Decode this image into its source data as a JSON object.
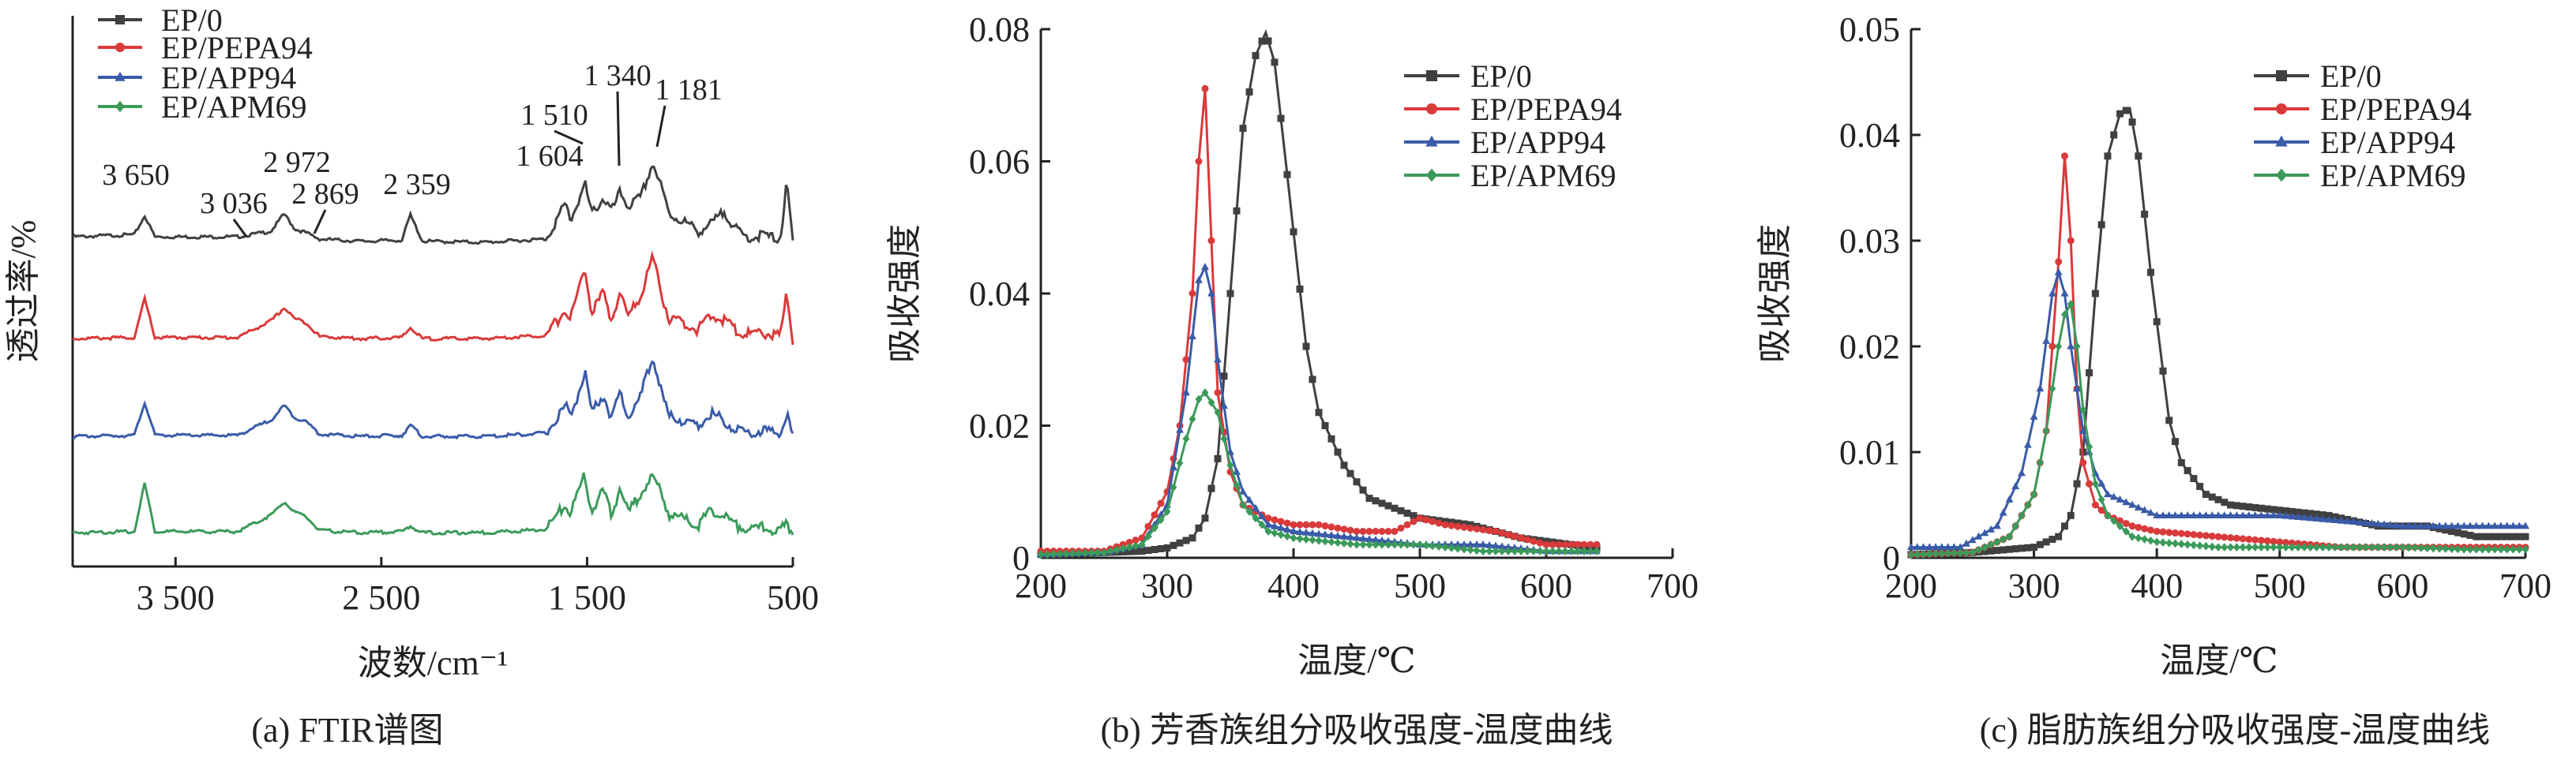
{
  "colors": {
    "EP/0": "#404040",
    "EP/PEPA94": "#d93a3a",
    "EP/APP94": "#3a5ba8",
    "EP/APM69": "#3b9a5a"
  },
  "chart_data": [
    {
      "type": "line",
      "caption": "(a) FTIR谱图",
      "xlabel": "波数/cm⁻¹",
      "ylabel": "透过率/%",
      "xlim": [
        4000,
        500
      ],
      "x_reversed": true,
      "xticks": [
        3500,
        2500,
        1500,
        500
      ],
      "xtick_labels": [
        "3 500",
        "2 500",
        "1 500",
        "500"
      ],
      "yticks_shown": false,
      "legend": [
        "EP/0",
        "EP/PEPA94",
        "EP/APP94",
        "EP/APM69"
      ],
      "legend_position": "top-left",
      "annotations": [
        "3 650",
        "3 036",
        "2 972",
        "2 869",
        "2 359",
        "1 604",
        "1 510",
        "1 340",
        "1 181"
      ],
      "series": [
        {
          "name": "EP/0",
          "marker": "square",
          "x": [
            4000,
            3700,
            3650,
            3600,
            3200,
            3036,
            2972,
            2920,
            2869,
            2800,
            2600,
            2400,
            2359,
            2300,
            2000,
            1700,
            1604,
            1580,
            1510,
            1480,
            1420,
            1380,
            1340,
            1300,
            1240,
            1181,
            1140,
            1100,
            1040,
            960,
            900,
            830,
            780,
            740,
            700,
            650,
            600,
            560,
            530,
            500
          ],
          "y": [
            0.07,
            0.09,
            0.26,
            0.07,
            0.07,
            0.12,
            0.28,
            0.14,
            0.11,
            0.05,
            0.03,
            0.04,
            0.27,
            0.03,
            0.02,
            0.05,
            0.37,
            0.22,
            0.55,
            0.28,
            0.42,
            0.3,
            0.47,
            0.35,
            0.42,
            0.74,
            0.52,
            0.27,
            0.22,
            0.12,
            0.18,
            0.3,
            0.14,
            0.08,
            0.06,
            0.09,
            0.06,
            0.06,
            0.55,
            0.02
          ]
        },
        {
          "name": "EP/PEPA94",
          "marker": "circle",
          "x": [
            4000,
            3700,
            3650,
            3600,
            3200,
            3036,
            2972,
            2920,
            2869,
            2800,
            2600,
            2400,
            2359,
            2300,
            2000,
            1700,
            1604,
            1580,
            1510,
            1480,
            1420,
            1380,
            1340,
            1300,
            1240,
            1181,
            1140,
            1100,
            1040,
            960,
            900,
            830,
            780,
            740,
            700,
            650,
            600,
            560,
            530,
            500
          ],
          "y": [
            0.02,
            0.03,
            0.38,
            0.03,
            0.03,
            0.18,
            0.3,
            0.2,
            0.17,
            0.04,
            0.02,
            0.03,
            0.12,
            0.02,
            0.02,
            0.05,
            0.28,
            0.2,
            0.67,
            0.25,
            0.43,
            0.18,
            0.44,
            0.22,
            0.4,
            0.77,
            0.43,
            0.2,
            0.17,
            0.1,
            0.22,
            0.19,
            0.1,
            0.07,
            0.05,
            0.08,
            0.05,
            0.05,
            0.42,
            0.01
          ]
        },
        {
          "name": "EP/APP94",
          "marker": "triangle",
          "x": [
            4000,
            3700,
            3650,
            3600,
            3200,
            3036,
            2972,
            2920,
            2869,
            2800,
            2600,
            2400,
            2359,
            2300,
            2000,
            1700,
            1604,
            1580,
            1510,
            1480,
            1420,
            1380,
            1340,
            1300,
            1240,
            1181,
            1140,
            1100,
            1040,
            960,
            900,
            830,
            780,
            740,
            700,
            650,
            600,
            560,
            530,
            500
          ],
          "y": [
            0.02,
            0.03,
            0.33,
            0.03,
            0.03,
            0.17,
            0.3,
            0.19,
            0.16,
            0.04,
            0.02,
            0.03,
            0.12,
            0.02,
            0.02,
            0.05,
            0.3,
            0.2,
            0.6,
            0.22,
            0.4,
            0.17,
            0.42,
            0.2,
            0.38,
            0.76,
            0.42,
            0.2,
            0.17,
            0.1,
            0.23,
            0.16,
            0.08,
            0.07,
            0.05,
            0.08,
            0.05,
            0.05,
            0.24,
            0.01
          ]
        },
        {
          "name": "EP/APM69",
          "marker": "diamond",
          "x": [
            4000,
            3700,
            3650,
            3600,
            3200,
            3036,
            2972,
            2920,
            2869,
            2800,
            2600,
            2400,
            2359,
            2300,
            2000,
            1700,
            1604,
            1580,
            1510,
            1480,
            1420,
            1380,
            1340,
            1300,
            1240,
            1181,
            1140,
            1100,
            1040,
            960,
            900,
            830,
            780,
            740,
            700,
            650,
            600,
            560,
            530,
            500
          ],
          "y": [
            0.02,
            0.03,
            0.47,
            0.03,
            0.03,
            0.18,
            0.3,
            0.2,
            0.17,
            0.04,
            0.02,
            0.03,
            0.08,
            0.02,
            0.02,
            0.05,
            0.28,
            0.2,
            0.55,
            0.22,
            0.4,
            0.17,
            0.43,
            0.2,
            0.38,
            0.53,
            0.38,
            0.18,
            0.15,
            0.09,
            0.22,
            0.16,
            0.09,
            0.07,
            0.05,
            0.07,
            0.04,
            0.04,
            0.1,
            0.01
          ]
        }
      ]
    },
    {
      "type": "line",
      "caption": "(b) 芳香族组分吸收强度-温度曲线",
      "xlabel": "温度/℃",
      "ylabel": "吸收强度",
      "xlim": [
        200,
        700
      ],
      "ylim": [
        0,
        0.08
      ],
      "xticks": [
        200,
        300,
        400,
        500,
        600,
        700
      ],
      "yticks": [
        0,
        0.02,
        0.04,
        0.06,
        0.08
      ],
      "ytick_labels": [
        "0",
        "0.02",
        "0.04",
        "0.06",
        "0.08"
      ],
      "legend": [
        "EP/0",
        "EP/PEPA94",
        "EP/APP94",
        "EP/APM69"
      ],
      "legend_position": "top-right",
      "series": [
        {
          "name": "EP/0",
          "marker": "square",
          "x": [
            200,
            250,
            280,
            300,
            320,
            330,
            340,
            350,
            360,
            370,
            378,
            385,
            395,
            410,
            420,
            440,
            460,
            500,
            540,
            560,
            580,
            620,
            640
          ],
          "y": [
            0.0005,
            0.0008,
            0.001,
            0.0015,
            0.003,
            0.006,
            0.015,
            0.04,
            0.065,
            0.076,
            0.0795,
            0.075,
            0.058,
            0.032,
            0.022,
            0.014,
            0.009,
            0.006,
            0.005,
            0.004,
            0.003,
            0.002,
            0.0015
          ]
        },
        {
          "name": "EP/PEPA94",
          "marker": "circle",
          "x": [
            200,
            250,
            280,
            300,
            310,
            320,
            325,
            330,
            335,
            340,
            350,
            360,
            370,
            380,
            400,
            420,
            450,
            480,
            500,
            520,
            560,
            600,
            640
          ],
          "y": [
            0.001,
            0.001,
            0.003,
            0.01,
            0.02,
            0.04,
            0.06,
            0.071,
            0.048,
            0.025,
            0.013,
            0.008,
            0.007,
            0.006,
            0.005,
            0.005,
            0.004,
            0.004,
            0.006,
            0.005,
            0.004,
            0.002,
            0.002
          ]
        },
        {
          "name": "EP/APP94",
          "marker": "triangle",
          "x": [
            200,
            250,
            280,
            300,
            315,
            325,
            330,
            335,
            340,
            350,
            360,
            380,
            400,
            450,
            500,
            550,
            600,
            640
          ],
          "y": [
            0.0005,
            0.0008,
            0.002,
            0.008,
            0.025,
            0.042,
            0.044,
            0.04,
            0.03,
            0.016,
            0.01,
            0.005,
            0.004,
            0.003,
            0.002,
            0.002,
            0.001,
            0.001
          ]
        },
        {
          "name": "EP/APM69",
          "marker": "diamond",
          "x": [
            200,
            250,
            280,
            300,
            315,
            325,
            330,
            340,
            350,
            360,
            380,
            400,
            450,
            500,
            550,
            600,
            640
          ],
          "y": [
            0.0005,
            0.0008,
            0.002,
            0.007,
            0.018,
            0.024,
            0.025,
            0.022,
            0.014,
            0.008,
            0.004,
            0.003,
            0.002,
            0.002,
            0.001,
            0.001,
            0.001
          ]
        }
      ]
    },
    {
      "type": "line",
      "caption": "(c) 脂肪族组分吸收强度-温度曲线",
      "xlabel": "温度/℃",
      "ylabel": "吸收强度",
      "xlim": [
        200,
        700
      ],
      "ylim": [
        0,
        0.05
      ],
      "xticks": [
        200,
        300,
        400,
        500,
        600,
        700
      ],
      "yticks": [
        0,
        0.01,
        0.02,
        0.03,
        0.04,
        0.05
      ],
      "ytick_labels": [
        "0",
        "0.01",
        "0.02",
        "0.03",
        "0.04",
        "0.05"
      ],
      "legend": [
        "EP/0",
        "EP/PEPA94",
        "EP/APP94",
        "EP/APM69"
      ],
      "legend_position": "top-right",
      "series": [
        {
          "name": "EP/0",
          "marker": "square",
          "x": [
            200,
            250,
            280,
            300,
            320,
            330,
            340,
            350,
            360,
            370,
            378,
            385,
            395,
            410,
            420,
            440,
            460,
            500,
            540,
            580,
            620,
            660,
            700
          ],
          "y": [
            0.0003,
            0.0005,
            0.0008,
            0.001,
            0.002,
            0.004,
            0.01,
            0.025,
            0.038,
            0.042,
            0.0425,
            0.038,
            0.027,
            0.013,
            0.009,
            0.006,
            0.005,
            0.0045,
            0.004,
            0.003,
            0.003,
            0.002,
            0.002
          ]
        },
        {
          "name": "EP/PEPA94",
          "marker": "circle",
          "x": [
            200,
            250,
            280,
            300,
            310,
            320,
            325,
            330,
            335,
            340,
            350,
            360,
            380,
            400,
            450,
            500,
            550,
            600,
            650,
            700
          ],
          "y": [
            0.0003,
            0.0005,
            0.002,
            0.006,
            0.012,
            0.028,
            0.038,
            0.03,
            0.016,
            0.009,
            0.005,
            0.004,
            0.003,
            0.0025,
            0.002,
            0.0015,
            0.001,
            0.001,
            0.001,
            0.001
          ]
        },
        {
          "name": "EP/APP94",
          "marker": "triangle",
          "x": [
            200,
            240,
            270,
            290,
            305,
            315,
            320,
            325,
            330,
            340,
            350,
            360,
            380,
            400,
            450,
            500,
            550,
            600,
            650,
            700
          ],
          "y": [
            0.001,
            0.001,
            0.003,
            0.008,
            0.016,
            0.025,
            0.027,
            0.025,
            0.02,
            0.012,
            0.008,
            0.006,
            0.005,
            0.004,
            0.004,
            0.004,
            0.0035,
            0.003,
            0.003,
            0.003
          ]
        },
        {
          "name": "EP/APM69",
          "marker": "diamond",
          "x": [
            200,
            250,
            280,
            300,
            310,
            320,
            325,
            330,
            335,
            340,
            350,
            360,
            380,
            400,
            450,
            500,
            550,
            600,
            650,
            700
          ],
          "y": [
            0.0003,
            0.0005,
            0.002,
            0.006,
            0.012,
            0.02,
            0.023,
            0.024,
            0.02,
            0.014,
            0.007,
            0.004,
            0.002,
            0.0015,
            0.001,
            0.001,
            0.001,
            0.001,
            0.0008,
            0.0008
          ]
        }
      ]
    }
  ]
}
